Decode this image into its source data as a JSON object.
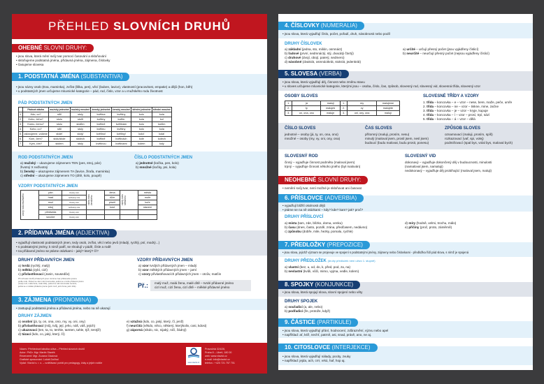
{
  "left": {
    "title_light": "PŘEHLED",
    "title_bold": "SLOVNÍCH DRUHŮ",
    "ohebne": {
      "bold": "OHEBNÉ",
      "rest": "SLOVNÍ DRUHY:",
      "bullets": [
        "• jsou slova, která mění svůj tvar pomocí časování a skloňování",
        "• skloňujeme podstatná jména, přídavná jména, zájmena, číslovky",
        "• časujeme slovesa"
      ]
    },
    "s1": {
      "bold": "1. PODSTATNÁ JMÉNA",
      "rest": "(SUBSTANTIVA)",
      "bullets": [
        "• jsou názvy osob (Eva, maminka), zvířat (liška, pes), věcí (buben, lavice), vlastností (pracovitost, empatie) a dějů (hon, běh)",
        "• u podstatných jmen určujeme mluvnické kategorie – pád, rod, číslo, vzor a u mužského rodu životnost"
      ],
      "pad_heading": "PÁD PODSTATNÝCH JMEN",
      "pad_table": {
        "headers": [
          "",
          "Pádová otázka",
          "mužský jednotné",
          "mužský množné",
          "ženský jednotné",
          "ženský množné",
          "střední jednotné",
          "střední množné"
        ],
        "rows": [
          [
            "1.",
            "Kdo, co?",
            "stůl",
            "stoly",
            "květina",
            "květiny",
            "kolo",
            "kola"
          ],
          [
            "2.",
            "Koho, čeho?",
            "stolu",
            "stolů",
            "květiny",
            "květin",
            "kola",
            "kol"
          ],
          [
            "3.",
            "Komu, čemu?",
            "stolu",
            "stolům",
            "květině",
            "květinám",
            "kolu",
            "kolům"
          ],
          [
            "4.",
            "Koho, co?",
            "stůl",
            "stoly",
            "květinu",
            "květiny",
            "kolo",
            "kola"
          ],
          [
            "5.",
            "oslovujeme, voláme",
            "stole!",
            "stoly!",
            "květino!",
            "květiny!",
            "kolo!",
            "kola!"
          ],
          [
            "6.",
            "Kom, čem?",
            "stolu/stole",
            "stolech",
            "květině",
            "květinách",
            "kole",
            "kolech"
          ],
          [
            "7.",
            "Kým, čím?",
            "stolem",
            "stoly",
            "květinou",
            "květinami",
            "kolem",
            "koly"
          ]
        ]
      },
      "rod_heading": "ROD PODSTATNÝCH JMEN",
      "rod": [
        "a) mužský – ukazujeme zájmenem TEN (pes, stroj, pán)",
        "životný X neživotný",
        "b) ženský – ukazujeme zájmenem TA (lavice, žirafa, maminka)",
        "c) střední – ukazujeme zájmenem TO (dítě, kolo, poupě)"
      ],
      "cislo_heading": "ČÍSLO PODSTATNÝCH JMEN",
      "cislo": [
        "a) jednotné (kočka, pes, kolo)",
        "b) množné (kočky, psi, kola)"
      ],
      "vzory_heading": "VZORY PODSTATNÝCH JMEN",
      "vzory": {
        "m_label": "vzory rodu mužského",
        "f_label": "vzory rodu ženského",
        "n_label": "vzory rodu středního",
        "m": [
          [
            "pán",
            "životný vzor"
          ],
          [
            "hrad",
            "neživotný vzor"
          ],
          [
            "muž",
            "životný vzor"
          ],
          [
            "stroj",
            "neživotný vzor"
          ],
          [
            "předseda",
            "životný vzor"
          ],
          [
            "soudce",
            "životný vzor"
          ]
        ],
        "f": [
          "žena",
          "růže",
          "píseň",
          "kost"
        ],
        "n": [
          "město",
          "moře",
          "kuře",
          "stavení"
        ]
      }
    },
    "s2": {
      "bold": "2. PŘÍDAVNÁ JMÉNA",
      "rest": "(ADJEKTIVA)",
      "bullets": [
        "• vyjadřují vlastnosti podstatných jmen, tedy osob, zvířat, věcí nebo jevů (mladý, rychlý, psí, modrý...)",
        "• s podstatnými jmény, k nimž patří, se shodují v pádě, čísle a rodě",
        "• na přídavné jméno se ptáme otázkami – jaký? který? čí?"
      ],
      "druhy_heading": "DRUHY PŘÍDAVNÝCH JMEN",
      "druhy": [
        "a) tvrdá (rychlý, malý)",
        "b) měkká (zybí, cizí)",
        "c) přivlastňovací (Janin, sousedův)"
      ],
      "note": [
        "Při určování druhů přídavných jmen měníme tvar přídavného jména",
        "podle rodu. Pokud se nám mění koncovka, jedná se o tvrdé přídavné jméno",
        "(malý muž, malá žena, malé dítě), pokud se nám koncovka nemění,",
        "jedná se o měkké přídavné jméno (jarní muž, jarní žena, jarní dítě)."
      ],
      "vzory_heading": "VZORY PŘÍDAVNÝCH JMEN",
      "vzory": [
        "a) vzor tvrdých přídavných jmen – mladý",
        "b) vzor měkkých přídavných jmen – jarní",
        "c) vzory přivlastňovacích přídavných jmen – otcův, matčin"
      ],
      "ex_label": "Př.:",
      "ex": [
        "malý muž, malá žena, malé dítě – tvrdé přídavné jméno",
        "cizí muž, cizí žena, cizí dítě – měkké přídavné jméno"
      ]
    },
    "s3": {
      "bold": "3. ZÁJMENA",
      "rest": "(PRONOMINA)",
      "bullets": [
        "• zastupují podstatná jména a přídavná jména, nebo na ně ukazují"
      ],
      "druhy_heading": "DRUHY ZÁJMEN",
      "col1": [
        "a) osobní (já, ty, on, ona, ono, my, vy, oni, ony)",
        "b) přivlastňovací (můj, tvůj, její, jeho, náš, váš, jejich)",
        "c) ukazovací (ten, ta, to, tenhle, tamten, tahle, týž, tentýž)",
        "d) tázací (kdo, co, jaký, který, čí)"
      ],
      "col2": [
        "e) vztažná (kdo, co, jaký, který, čí, jenž)",
        "f) neurčitá (někdo, něco, některý, kterýkoliv, cosi, kdosi)",
        "g) záporná (nikdo, nic, nijaký, ničí, žádný)"
      ]
    },
    "footer": {
      "left": [
        "Název: Přehledová tabulka učiva – Přehled slovních druhů",
        "Autor: PhDr. Mgr. Martin Staněk",
        "Recenzent: Mgr. Zuzana Glaciová",
        "Grafické zpracování: Lukáš Dolihal",
        "Vydal: Vlaviol s. r. o. – vzdělávací portál pro pedagogy, žáky a jejich rodiče"
      ],
      "logo_text": "www.vlaviol.cz",
      "right": [
        "Pravoúhlá 324/26,",
        "Praha 8 – Libeň, 180 00",
        "web: www.vlaviol.cz",
        "e-mail: info@vlaviol.cz",
        "telefon.: +420 721 757 701"
      ]
    }
  },
  "right": {
    "s4": {
      "bold": "4. ČÍSLOVKY",
      "rest": "(NUMERALIA)",
      "bullets": [
        "• jsou slova, která vyjadřují číslo, počet, pořadí, druh, násobnosti nebo podíl"
      ],
      "druhy_heading": "DRUHY ČÍSLOVEK",
      "col1": [
        "a) základní (jedna, sto, milión, osmnáct)",
        "b) řadové (první, sedmnáctý, stý, dvacátý čtvrtý)",
        "c) druhové (dvojí, obojí, paterý, sedmero)",
        "d) násobné (dvakrát, osmnáctkrát, stokrát, jedenkrát)"
      ],
      "col2": [
        "a) určité – určují přesný počet (jsou vyjádřeny číslicí)",
        "b) neurčité – neurčují přesný počet (nejsou vyjádřeny číslicí)"
      ]
    },
    "s5": {
      "bold": "5. SLOVESA",
      "rest": "(VERBA)",
      "bullets": [
        "• jsou slova, která vyjadřují děj, činnost nebo změnu stavu",
        "• u sloves určujeme mluvnické kategorie, kterými jsou – osoba, číslo, čas, způsob, slovesný rod, slovesný vid, slovesná třída, slovesný vzor"
      ],
      "osoby_heading": "OSOBY SLOVES",
      "osoby": [
        [
          "1.",
          "já",
          "maluji",
          "1.",
          "my",
          "malujeme"
        ],
        [
          "2.",
          "ty",
          "maluješ",
          "2.",
          "vy",
          "malujete"
        ],
        [
          "3.",
          "on, ona, ono",
          "maluje",
          "3.",
          "oni, ony, ona",
          "malují"
        ]
      ],
      "tridy_heading": "SLOVESNÉ TŘÍDY A VZORY",
      "tridy": [
        "1. třída – koncovka – e – vzor – nese, bere, maže, peče, umře",
        "2. třída – koncovka – ne – vzor – tiskne, mine, začne",
        "3. třída – koncovka – je – vzor – kryje, kupuje",
        "4. třída – koncovka – í – vzor – prosí, trpí, sází",
        "5. třída – koncovka – á – vzor – dělá"
      ],
      "cislo_heading": "ČÍSLO SLOVES",
      "cislo": [
        "jednotné – osoby (já, ty, on, ona, ono)",
        "množné – osoby (my, vy, oni, ony, ona)"
      ],
      "cas_heading": "ČAS SLOVES",
      "cas": [
        "přítomný (maluji, prosím, nesu)",
        "minulý (maloval jsem, prosil jsem, nesl jsem)",
        "budoucí (budu malovat, budu prosit, ponesu)"
      ],
      "zpusob_heading": "ZPŮSOB SLOVES",
      "zpusob": [
        "oznamovací (maluji, prosím, spíš)",
        "rozkazovací (vař, spi, volej)",
        "podmiňovací (spal bys, volal bys, maloval bych)"
      ],
      "rod_heading": "SLOVESNÝ ROD",
      "rod": [
        "činný – vyjadřuje činnost podmětu (maloval jsem)",
        "trpný – vyjadřuje činnost někoho jiného (byl malován)"
      ],
      "vid_heading": "SLOVESNÝ VID",
      "vid": [
        "dokonavý – vyjadřuje dokončený děj v budoucnosti, minulosti",
        "(namaloval jsem, namaluji)",
        "nedokonavý – vyjadřuje děj probíhající (maloval jsem, maluji)"
      ]
    },
    "neohebne": {
      "bold": "NEOHEBNÉ",
      "rest": "SLOVNÍ DRUHY:",
      "bullets": [
        "• nemění svůj tvar, není možné je skloňovat ani časovat"
      ]
    },
    "s6": {
      "bold": "6. PŘÍSLOVCE",
      "rest": "(ADVERBIA)",
      "bullets": [
        "• vyjadřují bližší okolnosti dějů",
        "• ptáme se na ně otázkami – kdy? kde? kam? jak? proč?"
      ],
      "druhy_heading": "DRUHY PŘÍSLOVCÍ",
      "col1": [
        "a) místa (tam, zde, blízko, doma, venku)",
        "b) času (dnes, často, pozdě, zrána, předčasem, nedávno)",
        "c) způsobu (dobře, mile, hezky, pomalu, rychle)"
      ],
      "col2": [
        "d) míry (hodně, velmi, trochu, málo)",
        "e) příčiny (proč, proto, záměrně)"
      ]
    },
    "s7": {
      "bold": "7. PŘEDLOŽKY",
      "rest": "(PREPOZICE)",
      "bullets": [
        "• jsou slova, jejichž význam se projevuje ve spojení s podstatnými jmény, zájmeny nebo číslovkami - předložka řídí pád slova, s nímž je spojená"
      ],
      "druhy_heading": "DRUHY PŘEDLOŽEK",
      "druhy_note": "(druhy předložek není učivo 1. stupně)",
      "druhy": [
        "a) vlastní (bez, u, od, do, k, před, pod, za, na)",
        "b) nevlastní (kvůli, vůči, mimo, vyjma, vedle, kolem)"
      ]
    },
    "s8": {
      "bold": "8. SPOJKY",
      "rest": "(KONJUNKCE)",
      "bullets": [
        "• jsou slova, která spojují slova, slovní spojení nebo věty"
      ],
      "druhy_heading": "DRUHY SPOJEK",
      "druhy": [
        "a) souřadicí (a, ale, nebo)",
        "b) podřadicí (že, protože, když)"
      ]
    },
    "s9": {
      "bold": "9. ČÁSTICE",
      "rest": "(PARTIKULE)",
      "bullets": [
        "• jsou slova, která vyjadřují přání, hodnocení, zdůraznění, výzvu nebo apel",
        "• například: ať, kéž, nechť, patrně, asi, snad, právě, ano, ne aj."
      ]
    },
    "s10": {
      "bold": "10. CITOSLOVCE",
      "rest": "(INTERJEKCE)",
      "bullets": [
        "• jsou slova, která vyjadřují nálady, pocity, zvuky",
        "• například: jejda, ach, crrr, vrkú, haf, hop aj."
      ]
    }
  },
  "colors": {
    "red": "#c0161f",
    "blue": "#2a9ad8",
    "navy": "#163e73",
    "light_band": "#e3f1fa",
    "grey_band": "#dfe3ea",
    "background": "#3b3b3d"
  }
}
